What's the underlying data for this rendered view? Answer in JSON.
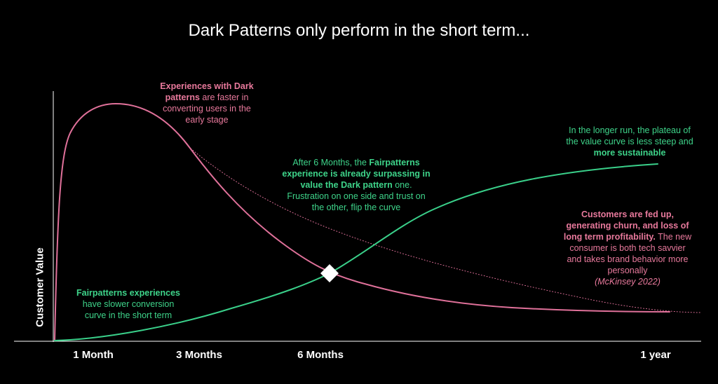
{
  "title": "Dark Patterns only perform in the short term...",
  "chart_data": {
    "type": "line",
    "ylabel": "Customer Value",
    "xlabel": "",
    "x_ticks": [
      "1 Month",
      "3 Months",
      "6 Months",
      "1 year"
    ],
    "series": [
      {
        "name": "",
        "color": "#e0719a",
        "style": "solid"
      },
      {
        "name": "",
        "color": "#3ad08a",
        "style": "solid"
      }
    ],
    "marker": {
      "shape": "diamond",
      "color": "#ffffff"
    }
  },
  "annotations": {
    "dark_early": [
      {
        "text": "Experiences with Dark",
        "bold": true
      },
      {
        "text": "patterns",
        "bold": true
      },
      {
        "text": " are faster in",
        "bold": false
      },
      {
        "text": "converting users in the",
        "bold": false
      },
      {
        "text": "early stage",
        "bold": false
      }
    ],
    "fair_early": {
      "bold": "Fairpatterns experiences",
      "line2": "have slower conversion",
      "line3": "curve in the short term"
    },
    "six_months": {
      "p1": "After 6 Months, the ",
      "b1": "Fairpatterns",
      "b2": "experience is already surpassing in",
      "b3": "value the Dark pattern",
      "p2": " one.",
      "p3": "Frustration on one side and trust on",
      "p4": "the other, flip the curve"
    },
    "longer_run": {
      "l1": "In the longer run, the plateau of",
      "l2": "the value curve is less steep and",
      "b": "more sustainable"
    },
    "fed_up": {
      "b1": "Customers are fed up,",
      "b2": "generating churn, and loss of",
      "b3": "long term profitability.",
      "p1": " The new",
      "p2": "consumer is both tech savvier",
      "p3": "and takes brand behavior more",
      "p4": "personally",
      "cite": "(McKinsey 2022)"
    }
  }
}
